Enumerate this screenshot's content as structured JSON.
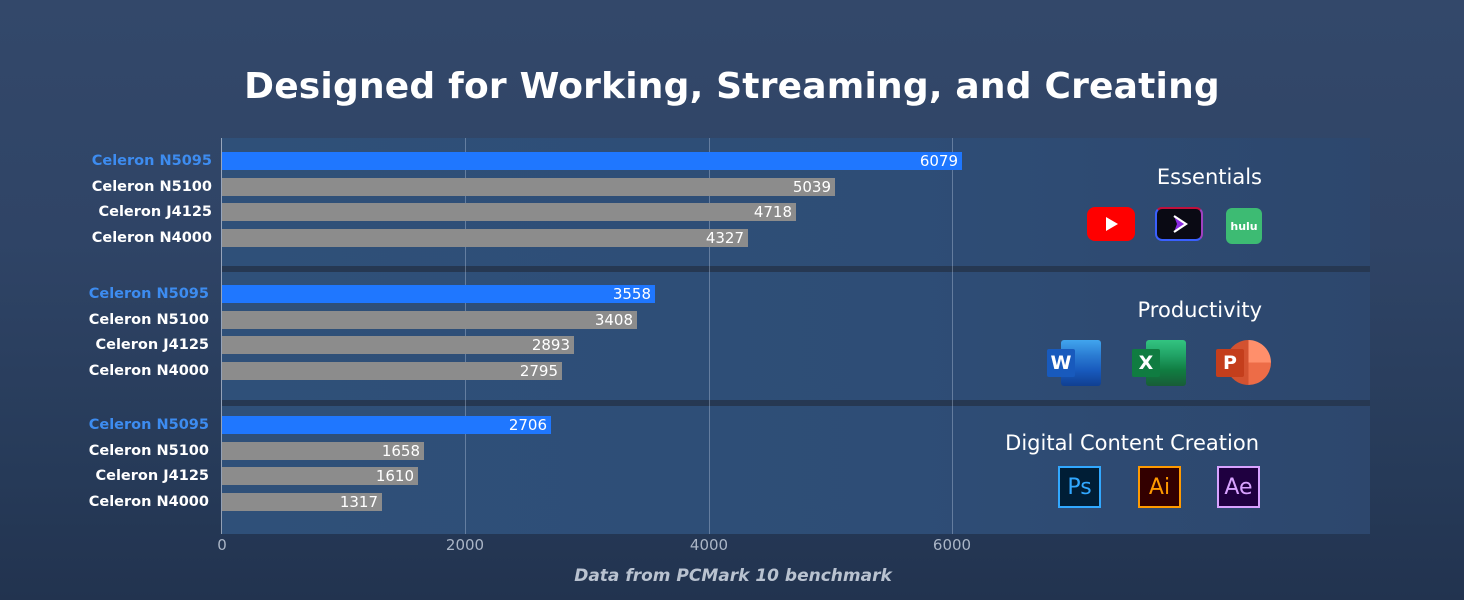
{
  "title": "Designed for Working, Streaming, and Creating",
  "source_note": "Data from PCMark 10 benchmark",
  "colors": {
    "highlight_bar": "#1f77ff",
    "highlight_label": "#3d8cf0",
    "other_bar": "#8c8c8c",
    "other_label": "#ffffff"
  },
  "chart_data": {
    "type": "bar",
    "orientation": "horizontal",
    "title": "Designed for Working, Streaming, and Creating",
    "xlabel": "",
    "ylabel": "",
    "xlim": [
      0,
      6000
    ],
    "xticks": [
      "0",
      "2000",
      "4000",
      "6000"
    ],
    "grid": true,
    "legend": "none",
    "annotation": "Data from PCMark 10 benchmark",
    "categories": [
      "Celeron N5095",
      "Celeron N5100",
      "Celeron J4125",
      "Celeron N4000"
    ],
    "highlight": "Celeron N5095",
    "groups": [
      {
        "name": "Essentials",
        "values": [
          6079,
          5039,
          4718,
          4327
        ],
        "icons": [
          "youtube-icon",
          "prime-video-icon",
          "hulu-icon"
        ]
      },
      {
        "name": "Productivity",
        "values": [
          3558,
          3408,
          2893,
          2795
        ],
        "icons": [
          "word-icon",
          "excel-icon",
          "powerpoint-icon"
        ]
      },
      {
        "name": "Digital Content Creation",
        "values": [
          2706,
          1658,
          1610,
          1317
        ],
        "icons": [
          "photoshop-icon",
          "illustrator-icon",
          "after-effects-icon"
        ]
      }
    ]
  },
  "icon_text": {
    "hulu": "hulu",
    "word": "W",
    "excel": "X",
    "powerpoint": "P",
    "photoshop": "Ps",
    "illustrator": "Ai",
    "after_effects": "Ae"
  }
}
